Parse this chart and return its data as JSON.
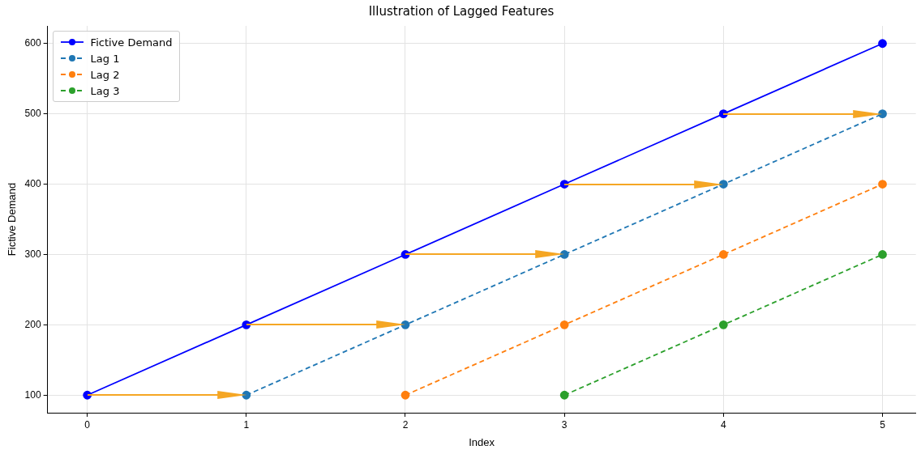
{
  "chart_data": {
    "type": "line",
    "title": "Illustration of Lagged Features",
    "xlabel": "Index",
    "ylabel": "Fictive Demand",
    "x": [
      0,
      1,
      2,
      3,
      4,
      5
    ],
    "xlim": [
      -0.25,
      5.21
    ],
    "xticks": [
      0,
      1,
      2,
      3,
      4,
      5
    ],
    "ylim": [
      75,
      625
    ],
    "yticks": [
      100,
      200,
      300,
      400,
      500,
      600
    ],
    "series": [
      {
        "name": "Fictive Demand",
        "color": "#0000ff",
        "values": [
          100,
          200,
          300,
          400,
          500,
          600
        ],
        "line_style": "solid"
      },
      {
        "name": "Lag 1",
        "color": "#1f77b4",
        "values": [
          null,
          100,
          200,
          300,
          400,
          500
        ],
        "line_style": "dashed"
      },
      {
        "name": "Lag 2",
        "color": "#ff7f0e",
        "values": [
          null,
          null,
          100,
          200,
          300,
          400
        ],
        "line_style": "dashed"
      },
      {
        "name": "Lag 3",
        "color": "#2ca02c",
        "values": [
          null,
          null,
          null,
          100,
          200,
          300
        ],
        "line_style": "dashed"
      }
    ],
    "grid": true,
    "legend": "top left",
    "marker": "circle"
  }
}
